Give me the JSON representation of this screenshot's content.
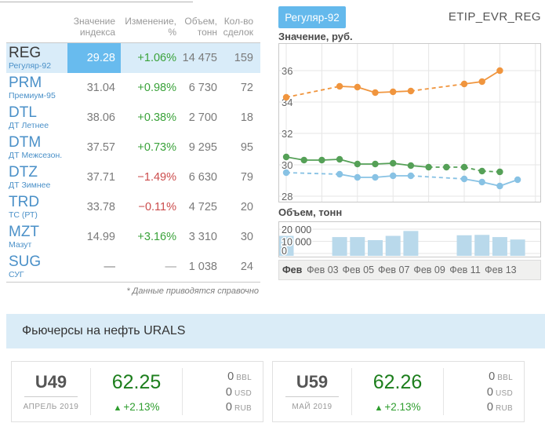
{
  "table": {
    "headers": [
      "Значение индекса",
      "Изменение, %",
      "Объем, тонн",
      "Кол-во сделок"
    ],
    "footnote": "* Данные приводятся справочно",
    "rows": [
      {
        "ticker": "REG",
        "name": "Регуляр-92",
        "value": "29.28",
        "change": "+1.06%",
        "change_dir": "up",
        "volume": "14 475",
        "deals": "159",
        "selected": true
      },
      {
        "ticker": "PRM",
        "name": "Премиум-95",
        "value": "31.04",
        "change": "+0.98%",
        "change_dir": "up",
        "volume": "6 730",
        "deals": "72",
        "selected": false
      },
      {
        "ticker": "DTL",
        "name": "ДТ Летнее",
        "value": "38.06",
        "change": "+0.38%",
        "change_dir": "up",
        "volume": "2 700",
        "deals": "18",
        "selected": false
      },
      {
        "ticker": "DTM",
        "name": "ДТ Межсезон.",
        "value": "37.57",
        "change": "+0.73%",
        "change_dir": "up",
        "volume": "9 295",
        "deals": "95",
        "selected": false
      },
      {
        "ticker": "DTZ",
        "name": "ДТ Зимнее",
        "value": "37.71",
        "change": "−1.49%",
        "change_dir": "down",
        "volume": "6 630",
        "deals": "79",
        "selected": false
      },
      {
        "ticker": "TRD",
        "name": "ТС (РТ)",
        "value": "33.78",
        "change": "−0.11%",
        "change_dir": "down",
        "volume": "4 725",
        "deals": "20",
        "selected": false
      },
      {
        "ticker": "MZT",
        "name": "Мазут",
        "value": "14.99",
        "change": "+3.16%",
        "change_dir": "up",
        "volume": "3 310",
        "deals": "30",
        "selected": false
      },
      {
        "ticker": "SUG",
        "name": "СУГ",
        "value": "—",
        "change": "—",
        "change_dir": "none",
        "volume": "1 038",
        "deals": "24",
        "selected": false
      }
    ]
  },
  "chart_panel": {
    "tab": "Регуляр-92",
    "code": "ETIP_EVR_REG",
    "value_title": "Значение, руб.",
    "volume_title": "Объем, тонн"
  },
  "chart_data": [
    {
      "type": "line",
      "title": "Значение, руб.",
      "x_unit": "февраль 2019, дни",
      "yticks": [
        28,
        30,
        32,
        34,
        36
      ],
      "ylim": [
        27.6,
        37.7
      ],
      "xgrid_days": [
        1,
        3,
        5,
        7,
        9,
        11,
        13,
        15
      ],
      "xlabels": [
        {
          "day": 1,
          "text": "Фев",
          "bold": true
        },
        {
          "day": 3,
          "text": "Фев 03"
        },
        {
          "day": 5,
          "text": "Фев 05"
        },
        {
          "day": 7,
          "text": "Фев 07"
        },
        {
          "day": 9,
          "text": "Фев 09"
        },
        {
          "day": 11,
          "text": "Фев 11"
        },
        {
          "day": 13,
          "text": "Фев 13"
        }
      ],
      "series": [
        {
          "name": "orange-series",
          "color": "#f0953e",
          "days": [
            1,
            4,
            5,
            6,
            7,
            8,
            11,
            12,
            13
          ],
          "values": [
            34.3,
            35.0,
            34.95,
            34.6,
            34.65,
            34.7,
            35.15,
            35.3,
            36.0
          ],
          "dashed_segments": [
            [
              1,
              4
            ],
            [
              8,
              11
            ]
          ]
        },
        {
          "name": "green-series",
          "color": "#55a057",
          "days": [
            1,
            2,
            3,
            4,
            5,
            6,
            7,
            8,
            9,
            10,
            11,
            12,
            13
          ],
          "values": [
            30.5,
            30.3,
            30.3,
            30.35,
            30.05,
            30.05,
            30.1,
            29.95,
            29.85,
            29.85,
            29.85,
            29.6,
            29.55
          ],
          "dashed_segments": [
            [
              9,
              13
            ]
          ]
        },
        {
          "name": "blue-series",
          "color": "#88c2e4",
          "days": [
            1,
            4,
            5,
            6,
            7,
            8,
            11,
            12,
            13,
            14
          ],
          "values": [
            29.5,
            29.4,
            29.2,
            29.2,
            29.3,
            29.3,
            29.1,
            28.9,
            28.65,
            29.05
          ],
          "dashed_segments": [
            [
              1,
              4
            ],
            [
              8,
              11
            ]
          ]
        }
      ]
    },
    {
      "type": "bar",
      "title": "Объем, тонн",
      "color": "#b9d9eb",
      "days": [
        1,
        4,
        5,
        6,
        7,
        8,
        11,
        12,
        13,
        14
      ],
      "values": [
        14500,
        13500,
        13500,
        11000,
        14500,
        18500,
        15000,
        15300,
        13500,
        11500
      ],
      "yticks": [
        0,
        10000,
        20000
      ],
      "ytick_labels": [
        "0",
        "10 000",
        "20 000"
      ]
    }
  ],
  "futures": {
    "title": "Фьючерсы на нефть URALS",
    "up_arrow": "▲",
    "cards": [
      {
        "code": "U49",
        "month": "АПРЕЛЬ 2019",
        "price": "62.25",
        "change": "+2.13%",
        "units": [
          {
            "value": "0",
            "unit": "BBL"
          },
          {
            "value": "0",
            "unit": "USD"
          },
          {
            "value": "0",
            "unit": "RUB"
          }
        ]
      },
      {
        "code": "U59",
        "month": "МАЙ 2019",
        "price": "62.26",
        "change": "+2.13%",
        "units": [
          {
            "value": "0",
            "unit": "BBL"
          },
          {
            "value": "0",
            "unit": "USD"
          },
          {
            "value": "0",
            "unit": "RUB"
          }
        ]
      }
    ]
  },
  "colors": {
    "accent_blue": "#64b9ec",
    "row_highlight": "#d9ecf9",
    "positive_green": "#3aa23a",
    "negative_red": "#cc4c4c",
    "banner_blue": "#daecf7"
  }
}
